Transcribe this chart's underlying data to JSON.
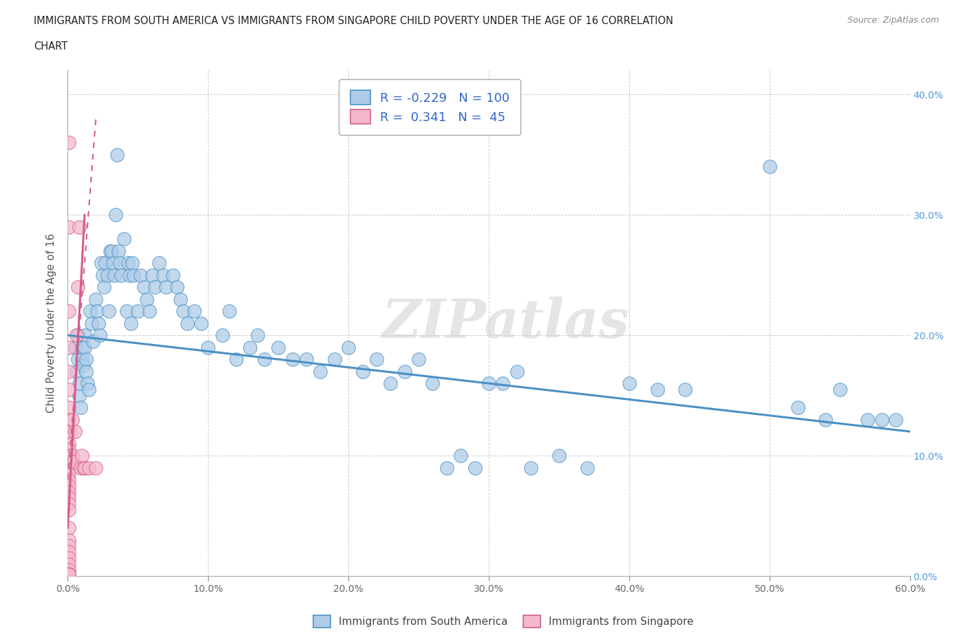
{
  "title_line1": "IMMIGRANTS FROM SOUTH AMERICA VS IMMIGRANTS FROM SINGAPORE CHILD POVERTY UNDER THE AGE OF 16 CORRELATION",
  "title_line2": "CHART",
  "source": "Source: ZipAtlas.com",
  "ylabel": "Child Poverty Under the Age of 16",
  "blue_R": -0.229,
  "blue_N": 100,
  "pink_R": 0.341,
  "pink_N": 45,
  "blue_color": "#aecce8",
  "pink_color": "#f4b8cc",
  "blue_line_color": "#4a90c4",
  "pink_line_color": "#d45c8a",
  "watermark": "ZIPatlas",
  "legend_label_blue": "Immigrants from South America",
  "legend_label_pink": "Immigrants from Singapore",
  "xlim": [
    0.0,
    0.6
  ],
  "ylim": [
    0.0,
    0.42
  ],
  "xticks": [
    0.0,
    0.1,
    0.2,
    0.3,
    0.4,
    0.5,
    0.6
  ],
  "yticks": [
    0.0,
    0.1,
    0.2,
    0.3,
    0.4
  ],
  "blue_reg": [
    0.0,
    0.6,
    0.2,
    0.12
  ],
  "pink_reg": [
    0.0,
    0.02,
    0.08,
    0.38
  ],
  "blue_scatter": [
    [
      0.005,
      0.19
    ],
    [
      0.006,
      0.17
    ],
    [
      0.007,
      0.18
    ],
    [
      0.007,
      0.2
    ],
    [
      0.008,
      0.15
    ],
    [
      0.008,
      0.16
    ],
    [
      0.009,
      0.14
    ],
    [
      0.01,
      0.19
    ],
    [
      0.01,
      0.18
    ],
    [
      0.011,
      0.175
    ],
    [
      0.012,
      0.2
    ],
    [
      0.012,
      0.19
    ],
    [
      0.013,
      0.18
    ],
    [
      0.013,
      0.17
    ],
    [
      0.014,
      0.16
    ],
    [
      0.015,
      0.155
    ],
    [
      0.016,
      0.22
    ],
    [
      0.017,
      0.21
    ],
    [
      0.018,
      0.195
    ],
    [
      0.02,
      0.23
    ],
    [
      0.021,
      0.22
    ],
    [
      0.022,
      0.21
    ],
    [
      0.023,
      0.2
    ],
    [
      0.024,
      0.26
    ],
    [
      0.025,
      0.25
    ],
    [
      0.026,
      0.24
    ],
    [
      0.027,
      0.26
    ],
    [
      0.028,
      0.25
    ],
    [
      0.029,
      0.22
    ],
    [
      0.03,
      0.27
    ],
    [
      0.031,
      0.27
    ],
    [
      0.032,
      0.26
    ],
    [
      0.033,
      0.25
    ],
    [
      0.034,
      0.3
    ],
    [
      0.035,
      0.35
    ],
    [
      0.036,
      0.27
    ],
    [
      0.037,
      0.26
    ],
    [
      0.038,
      0.25
    ],
    [
      0.04,
      0.28
    ],
    [
      0.042,
      0.22
    ],
    [
      0.043,
      0.26
    ],
    [
      0.044,
      0.25
    ],
    [
      0.045,
      0.21
    ],
    [
      0.046,
      0.26
    ],
    [
      0.047,
      0.25
    ],
    [
      0.05,
      0.22
    ],
    [
      0.052,
      0.25
    ],
    [
      0.054,
      0.24
    ],
    [
      0.056,
      0.23
    ],
    [
      0.058,
      0.22
    ],
    [
      0.06,
      0.25
    ],
    [
      0.062,
      0.24
    ],
    [
      0.065,
      0.26
    ],
    [
      0.068,
      0.25
    ],
    [
      0.07,
      0.24
    ],
    [
      0.075,
      0.25
    ],
    [
      0.078,
      0.24
    ],
    [
      0.08,
      0.23
    ],
    [
      0.082,
      0.22
    ],
    [
      0.085,
      0.21
    ],
    [
      0.09,
      0.22
    ],
    [
      0.095,
      0.21
    ],
    [
      0.1,
      0.19
    ],
    [
      0.11,
      0.2
    ],
    [
      0.115,
      0.22
    ],
    [
      0.12,
      0.18
    ],
    [
      0.13,
      0.19
    ],
    [
      0.135,
      0.2
    ],
    [
      0.14,
      0.18
    ],
    [
      0.15,
      0.19
    ],
    [
      0.16,
      0.18
    ],
    [
      0.17,
      0.18
    ],
    [
      0.18,
      0.17
    ],
    [
      0.19,
      0.18
    ],
    [
      0.2,
      0.19
    ],
    [
      0.21,
      0.17
    ],
    [
      0.22,
      0.18
    ],
    [
      0.23,
      0.16
    ],
    [
      0.24,
      0.17
    ],
    [
      0.25,
      0.18
    ],
    [
      0.26,
      0.16
    ],
    [
      0.27,
      0.09
    ],
    [
      0.28,
      0.1
    ],
    [
      0.29,
      0.09
    ],
    [
      0.3,
      0.16
    ],
    [
      0.31,
      0.16
    ],
    [
      0.32,
      0.17
    ],
    [
      0.33,
      0.09
    ],
    [
      0.35,
      0.1
    ],
    [
      0.37,
      0.09
    ],
    [
      0.4,
      0.16
    ],
    [
      0.42,
      0.155
    ],
    [
      0.44,
      0.155
    ],
    [
      0.5,
      0.34
    ],
    [
      0.52,
      0.14
    ],
    [
      0.54,
      0.13
    ],
    [
      0.55,
      0.155
    ],
    [
      0.57,
      0.13
    ],
    [
      0.58,
      0.13
    ],
    [
      0.59,
      0.13
    ]
  ],
  "pink_scatter": [
    [
      0.001,
      0.36
    ],
    [
      0.001,
      0.29
    ],
    [
      0.001,
      0.22
    ],
    [
      0.001,
      0.19
    ],
    [
      0.001,
      0.17
    ],
    [
      0.001,
      0.155
    ],
    [
      0.001,
      0.14
    ],
    [
      0.001,
      0.13
    ],
    [
      0.001,
      0.12
    ],
    [
      0.001,
      0.11
    ],
    [
      0.001,
      0.105
    ],
    [
      0.001,
      0.1
    ],
    [
      0.001,
      0.095
    ],
    [
      0.001,
      0.09
    ],
    [
      0.001,
      0.085
    ],
    [
      0.001,
      0.08
    ],
    [
      0.001,
      0.075
    ],
    [
      0.001,
      0.07
    ],
    [
      0.001,
      0.065
    ],
    [
      0.001,
      0.06
    ],
    [
      0.001,
      0.055
    ],
    [
      0.001,
      0.04
    ],
    [
      0.001,
      0.03
    ],
    [
      0.001,
      0.025
    ],
    [
      0.001,
      0.02
    ],
    [
      0.001,
      0.015
    ],
    [
      0.001,
      0.01
    ],
    [
      0.001,
      0.005
    ],
    [
      0.001,
      0.002
    ],
    [
      0.001,
      0.001
    ],
    [
      0.002,
      0.12
    ],
    [
      0.002,
      0.095
    ],
    [
      0.003,
      0.13
    ],
    [
      0.003,
      0.1
    ],
    [
      0.004,
      0.095
    ],
    [
      0.005,
      0.12
    ],
    [
      0.006,
      0.2
    ],
    [
      0.007,
      0.24
    ],
    [
      0.008,
      0.29
    ],
    [
      0.009,
      0.09
    ],
    [
      0.01,
      0.1
    ],
    [
      0.011,
      0.09
    ],
    [
      0.012,
      0.09
    ],
    [
      0.015,
      0.09
    ],
    [
      0.02,
      0.09
    ]
  ]
}
